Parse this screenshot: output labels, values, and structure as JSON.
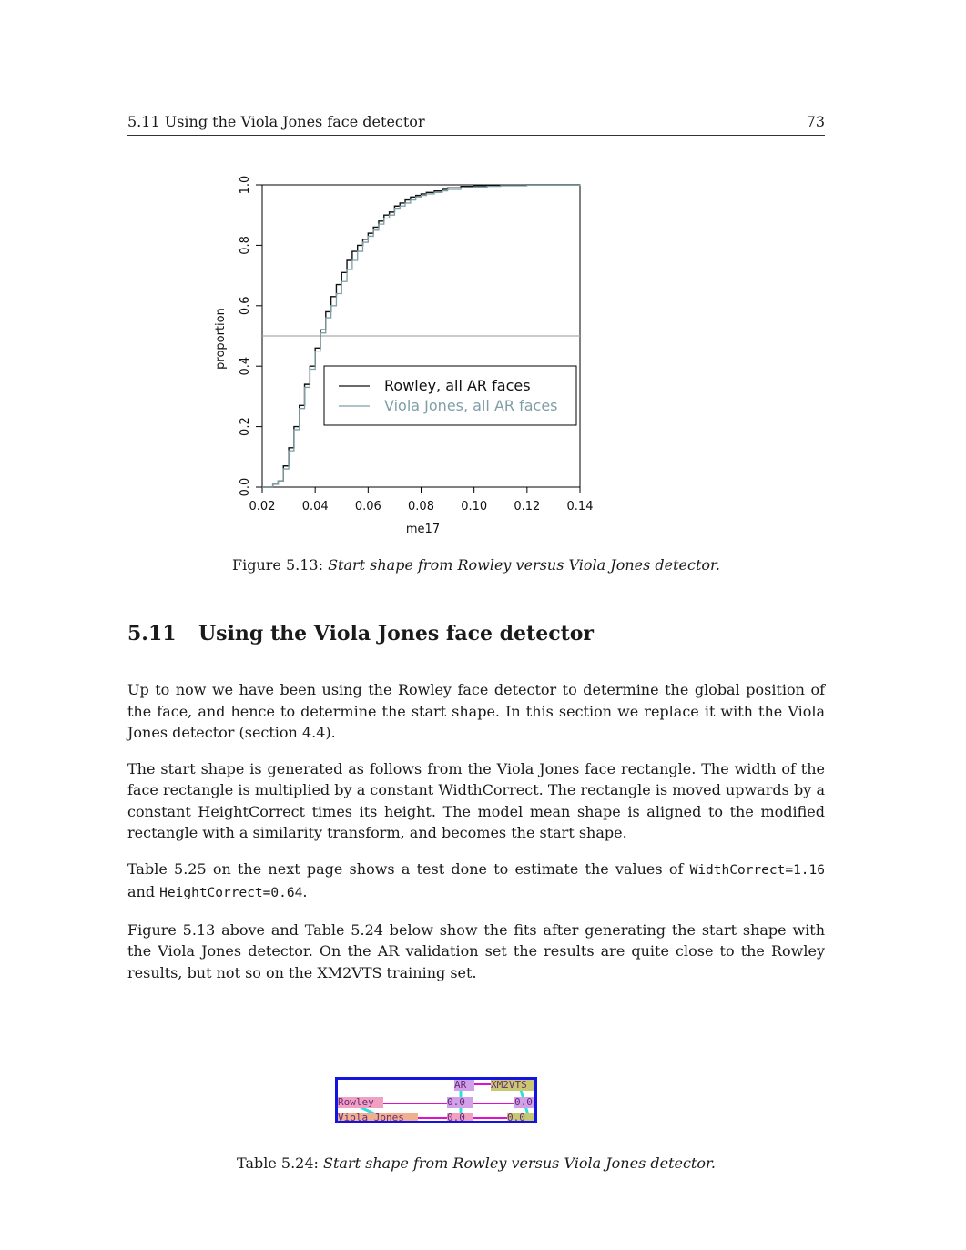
{
  "running_head": {
    "title": "5.11 Using the Viola Jones face detector",
    "page_number": "73"
  },
  "figure": {
    "caption_label": "Figure 5.13:",
    "caption_text": "Start shape from Rowley versus Viola Jones detector."
  },
  "chart_data": {
    "type": "line",
    "xlabel": "me17",
    "ylabel": "proportion",
    "xlim": [
      0.02,
      0.14
    ],
    "ylim": [
      0.0,
      1.0
    ],
    "x_ticks": [
      "0.02",
      "0.04",
      "0.06",
      "0.08",
      "0.10",
      "0.12",
      "0.14"
    ],
    "y_ticks": [
      "0.0",
      "0.2",
      "0.4",
      "0.6",
      "0.8",
      "1.0"
    ],
    "reference_line_y": 0.5,
    "legend_position": "center-right",
    "series": [
      {
        "name": "Rowley, all AR faces",
        "color": "#111111",
        "x": [
          0.02,
          0.024,
          0.026,
          0.028,
          0.03,
          0.032,
          0.034,
          0.036,
          0.038,
          0.04,
          0.042,
          0.044,
          0.046,
          0.048,
          0.05,
          0.052,
          0.054,
          0.056,
          0.058,
          0.06,
          0.062,
          0.064,
          0.066,
          0.068,
          0.07,
          0.072,
          0.074,
          0.076,
          0.078,
          0.08,
          0.082,
          0.085,
          0.088,
          0.09,
          0.095,
          0.1,
          0.105,
          0.11,
          0.12,
          0.14
        ],
        "y": [
          0.0,
          0.01,
          0.02,
          0.07,
          0.13,
          0.2,
          0.27,
          0.34,
          0.4,
          0.46,
          0.52,
          0.58,
          0.63,
          0.67,
          0.71,
          0.75,
          0.78,
          0.8,
          0.82,
          0.84,
          0.86,
          0.88,
          0.9,
          0.91,
          0.93,
          0.94,
          0.95,
          0.96,
          0.965,
          0.97,
          0.975,
          0.98,
          0.985,
          0.99,
          0.995,
          0.997,
          0.998,
          0.999,
          1.0,
          1.0
        ]
      },
      {
        "name": "Viola Jones, all AR faces",
        "color": "#7f9fa6",
        "x": [
          0.02,
          0.024,
          0.026,
          0.028,
          0.03,
          0.032,
          0.034,
          0.036,
          0.038,
          0.04,
          0.042,
          0.044,
          0.046,
          0.048,
          0.05,
          0.052,
          0.054,
          0.056,
          0.058,
          0.06,
          0.062,
          0.064,
          0.066,
          0.068,
          0.07,
          0.072,
          0.074,
          0.076,
          0.078,
          0.08,
          0.082,
          0.085,
          0.088,
          0.09,
          0.095,
          0.1,
          0.105,
          0.11,
          0.12,
          0.14
        ],
        "y": [
          0.0,
          0.01,
          0.02,
          0.06,
          0.12,
          0.19,
          0.26,
          0.33,
          0.39,
          0.45,
          0.51,
          0.56,
          0.6,
          0.64,
          0.68,
          0.72,
          0.75,
          0.78,
          0.81,
          0.83,
          0.85,
          0.87,
          0.89,
          0.9,
          0.92,
          0.93,
          0.94,
          0.95,
          0.96,
          0.965,
          0.97,
          0.975,
          0.98,
          0.985,
          0.99,
          0.993,
          0.995,
          0.997,
          0.999,
          1.0
        ]
      }
    ]
  },
  "section": {
    "number": "5.11",
    "title": "Using the Viola Jones face detector"
  },
  "paragraphs": {
    "p1": "Up to now we have been using the Rowley face detector to determine the global position of the face, and hence to determine the start shape. In this section we replace it with the Viola Jones detector (section 4.4).",
    "p2": "The start shape is generated as follows from the Viola Jones face rectangle. The width of the face rectangle is multiplied by a constant WidthCorrect. The rectangle is moved upwards by a constant HeightCorrect times its height. The model mean shape is aligned to the modified rectangle with a similarity transform, and becomes the start shape.",
    "p3_a": "Table 5.25 on the next page shows a test done to estimate the values of ",
    "p3_code1": "WidthCorrect=1.16",
    "p3_b": " and ",
    "p3_code2": "HeightCorrect=0.64",
    "p3_c": ".",
    "p4": "Figure 5.13 above and Table 5.24 below show the fits after generating the start shape with the Viola Jones detector. On the AR validation set the results are quite close to the Rowley results, but not so on the XM2VTS training set."
  },
  "table": {
    "header": [
      "AR",
      "XM2VTS"
    ],
    "rows": [
      {
        "label": "Rowley",
        "values": [
          "0.0",
          "0.0"
        ]
      },
      {
        "label": "Viola Jones",
        "values": [
          "0.0",
          "0.0"
        ]
      }
    ],
    "caption_label": "Table 5.24:",
    "caption_text": "Start shape from Rowley versus Viola Jones detector."
  }
}
